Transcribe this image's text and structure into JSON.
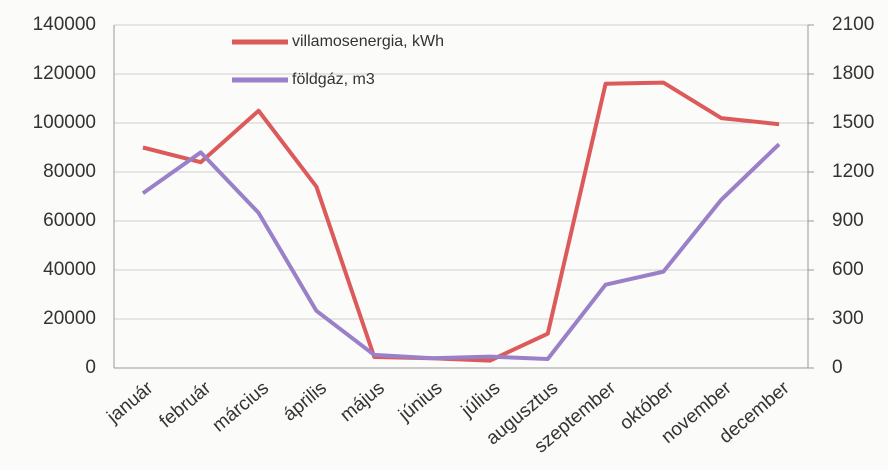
{
  "chart_data": {
    "type": "line",
    "categories": [
      "január",
      "február",
      "március",
      "április",
      "május",
      "június",
      "július",
      "augusztus",
      "szeptember",
      "október",
      "november",
      "december"
    ],
    "series": [
      {
        "name": "villamosenergia, kWh",
        "color": "#dc5a5a",
        "values": [
          90000,
          84000,
          105000,
          74000,
          4500,
          4000,
          3000,
          14000,
          116000,
          116500,
          102000,
          99500
        ]
      },
      {
        "name": "földgáz, m3",
        "color": "#9a80c8",
        "axis": "y2",
        "values": [
          1070,
          1320,
          950,
          350,
          80,
          60,
          70,
          55,
          510,
          590,
          1030,
          1370
        ]
      }
    ],
    "ylim": [
      0,
      140000
    ],
    "yticks": [
      0,
      20000,
      40000,
      60000,
      80000,
      100000,
      120000,
      140000
    ],
    "y2lim": [
      0,
      2100
    ],
    "y2ticks": [
      0,
      300,
      600,
      900,
      1200,
      1500,
      1800,
      2100
    ],
    "grid": true,
    "legend": "top"
  }
}
